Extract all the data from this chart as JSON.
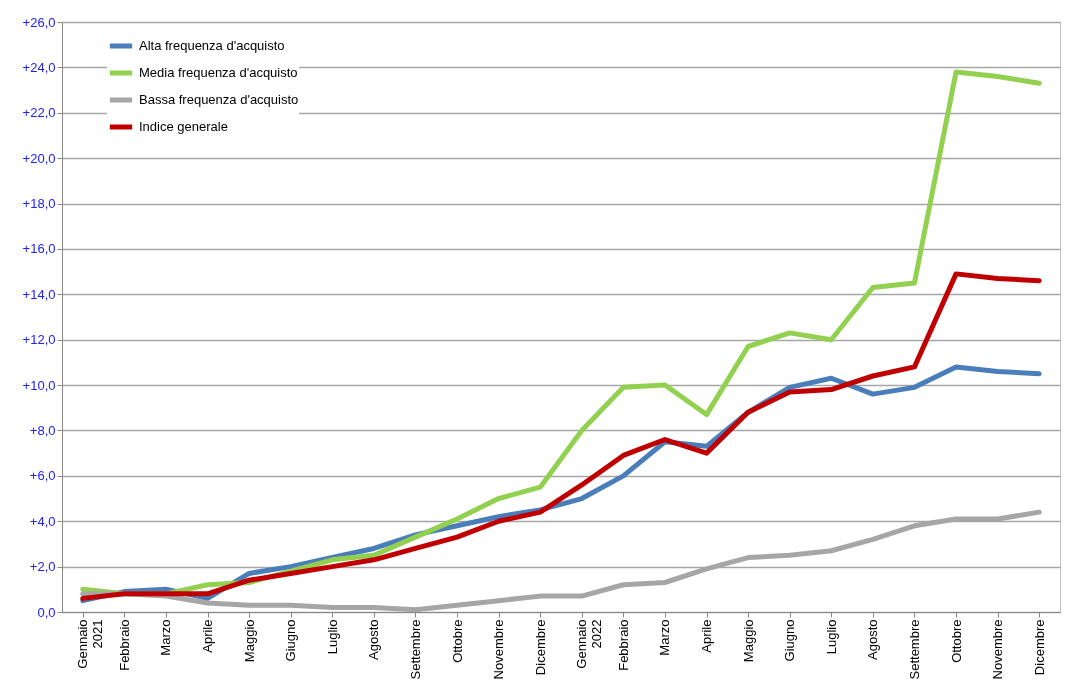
{
  "chart_data": {
    "type": "line",
    "categories": [
      "Gennaio\n2021",
      "Febbraio",
      "Marzo",
      "Aprile",
      "Maggio",
      "Giugno",
      "Luglio",
      "Agosto",
      "Settembre",
      "Ottobre",
      "Novembre",
      "Dicembre",
      "Gennaio\n2022",
      "Febbraio",
      "Marzo",
      "Aprile",
      "Maggio",
      "Giugno",
      "Luglio",
      "Agosto",
      "Settembre",
      "Ottobre",
      "Novembre",
      "Dicembre"
    ],
    "series": [
      {
        "name": "Alta frequenza d'acquisto",
        "color": "#4a7ebb",
        "values": [
          0.5,
          0.9,
          1.0,
          0.6,
          1.7,
          2.0,
          2.4,
          2.8,
          3.4,
          3.8,
          4.2,
          4.5,
          5.0,
          6.0,
          7.5,
          7.3,
          8.8,
          9.9,
          10.3,
          9.6,
          9.9,
          10.8,
          10.6,
          10.5
        ]
      },
      {
        "name": "Media frequenza d'acquisto",
        "color": "#92d050",
        "values": [
          1.0,
          0.8,
          0.8,
          1.2,
          1.3,
          1.8,
          2.3,
          2.5,
          3.3,
          4.1,
          5.0,
          5.5,
          8.0,
          9.9,
          10.0,
          8.7,
          11.7,
          12.3,
          12.0,
          14.3,
          14.5,
          23.8,
          23.6,
          23.3
        ]
      },
      {
        "name": "Bassa frequenza d'acquisto",
        "color": "#a6a6a6",
        "values": [
          0.8,
          0.8,
          0.7,
          0.4,
          0.3,
          0.3,
          0.2,
          0.2,
          0.1,
          0.3,
          0.5,
          0.7,
          0.7,
          1.2,
          1.3,
          1.9,
          2.4,
          2.5,
          2.7,
          3.2,
          3.8,
          4.1,
          4.1,
          4.4
        ]
      },
      {
        "name": "Indice generale",
        "color": "#c00000",
        "values": [
          0.6,
          0.8,
          0.8,
          0.8,
          1.4,
          1.7,
          2.0,
          2.3,
          2.8,
          3.3,
          4.0,
          4.4,
          5.6,
          6.9,
          7.6,
          7.0,
          8.8,
          9.7,
          9.8,
          10.4,
          10.8,
          14.9,
          14.7,
          14.6
        ]
      }
    ],
    "ylim": [
      0,
      26
    ],
    "yticks": [
      {
        "value": 0,
        "label": "0,0"
      },
      {
        "value": 2,
        "label": "+2,0"
      },
      {
        "value": 4,
        "label": "+4,0"
      },
      {
        "value": 6,
        "label": "+6,0"
      },
      {
        "value": 8,
        "label": "+8,0"
      },
      {
        "value": 10,
        "label": "+10,0"
      },
      {
        "value": 12,
        "label": "+12,0"
      },
      {
        "value": 14,
        "label": "+14,0"
      },
      {
        "value": 16,
        "label": "+16,0"
      },
      {
        "value": 18,
        "label": "+18,0"
      },
      {
        "value": 20,
        "label": "+20,0"
      },
      {
        "value": 22,
        "label": "+22,0"
      },
      {
        "value": 24,
        "label": "+24,0"
      },
      {
        "value": 26,
        "label": "+26,0"
      }
    ],
    "grid": "y",
    "legend": "top left"
  }
}
